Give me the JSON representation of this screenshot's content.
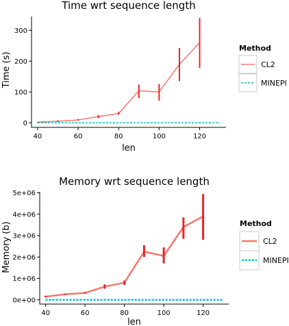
{
  "colors": {
    "cl2": "#f8766d",
    "cl2_error": "#e8232a",
    "minepi": "#00bfc4",
    "axis": "#000000",
    "legend_border": "#c8c8c8"
  },
  "chart_data": [
    {
      "type": "line",
      "title": "Time wrt sequence length",
      "xlabel": "len",
      "ylabel": "Time (s)",
      "xlim": [
        37,
        133
      ],
      "ylim": [
        -15,
        345
      ],
      "xticks": [
        40,
        60,
        80,
        100,
        120
      ],
      "yticks": [
        0,
        100,
        200,
        300
      ],
      "ytick_labels": [
        "0",
        "100",
        "200",
        "300"
      ],
      "grid": false,
      "legend": {
        "title": "Method",
        "position": "right",
        "entries": [
          "CL2",
          "MINEPI"
        ]
      },
      "series": [
        {
          "name": "CL2",
          "style": "solid",
          "x": [
            40,
            50,
            60,
            70,
            80,
            90,
            100,
            110,
            120
          ],
          "y": [
            2,
            5,
            9,
            20,
            30,
            104,
            100,
            190,
            260
          ],
          "err_low": [
            1,
            3,
            7,
            15,
            26,
            80,
            72,
            135,
            178
          ],
          "err_high": [
            3,
            8,
            12,
            25,
            35,
            124,
            126,
            243,
            340
          ]
        },
        {
          "name": "MINEPI",
          "style": "dashed",
          "x": [
            40,
            50,
            60,
            70,
            80,
            90,
            100,
            110,
            120,
            130
          ],
          "y": [
            0,
            0,
            0,
            0,
            0,
            0,
            0,
            0,
            0,
            0
          ]
        }
      ]
    },
    {
      "type": "line",
      "title": "Memory wrt sequence length",
      "xlabel": "len",
      "ylabel": "Memory (b)",
      "xlim": [
        37,
        133
      ],
      "ylim": [
        -200000,
        5050000
      ],
      "xticks": [
        40,
        60,
        80,
        100,
        120
      ],
      "yticks": [
        0,
        1000000,
        2000000,
        3000000,
        4000000,
        5000000
      ],
      "ytick_labels": [
        "0e+00",
        "1e+06",
        "2e+06",
        "3e+06",
        "4e+06",
        "5e+06"
      ],
      "grid": false,
      "legend": {
        "title": "Method",
        "position": "right",
        "entries": [
          "CL2",
          "MINEPI"
        ]
      },
      "series": [
        {
          "name": "CL2",
          "style": "solid",
          "x": [
            40,
            50,
            60,
            70,
            80,
            90,
            100,
            110,
            120
          ],
          "y": [
            150000,
            260000,
            320000,
            620000,
            800000,
            2250000,
            2050000,
            3400000,
            3900000
          ],
          "err_low": [
            110000,
            230000,
            290000,
            520000,
            700000,
            2000000,
            1700000,
            2850000,
            2800000
          ],
          "err_high": [
            190000,
            290000,
            360000,
            720000,
            900000,
            2550000,
            2450000,
            3850000,
            4950000
          ]
        },
        {
          "name": "MINEPI",
          "style": "dashed",
          "x": [
            40,
            50,
            60,
            70,
            80,
            90,
            100,
            110,
            120,
            130
          ],
          "y": [
            0,
            0,
            0,
            0,
            0,
            0,
            0,
            0,
            0,
            0
          ]
        }
      ]
    }
  ]
}
